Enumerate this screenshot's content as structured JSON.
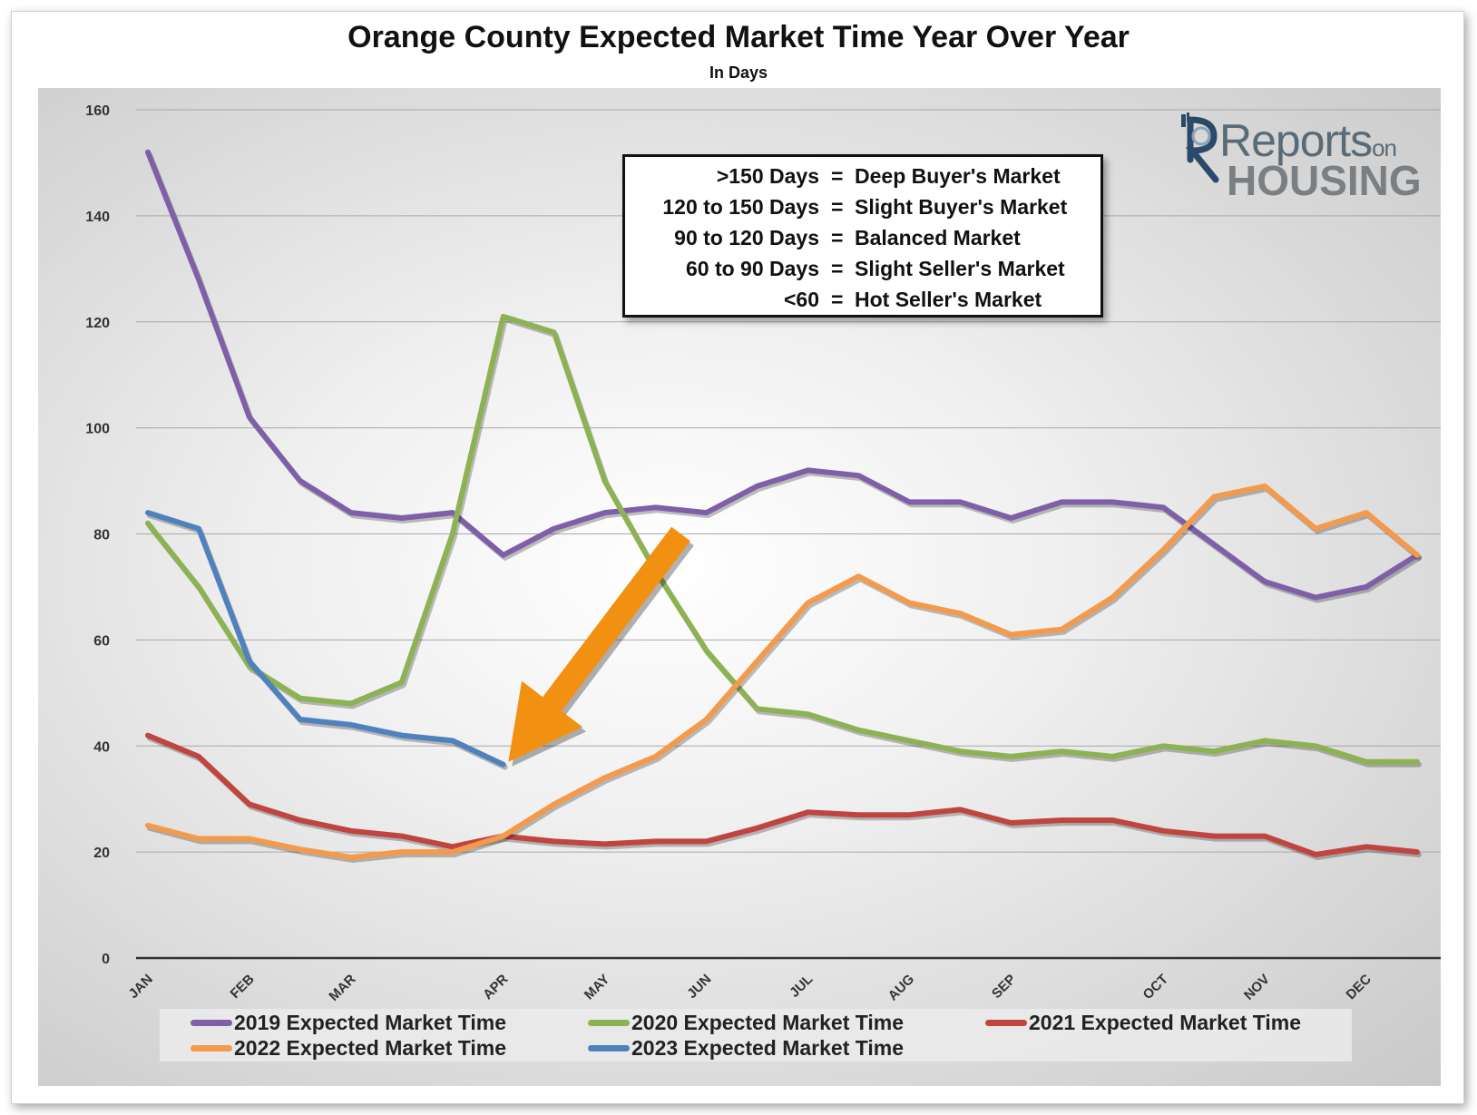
{
  "chart_data": {
    "type": "line",
    "title": "Orange County Expected Market Time Year Over Year",
    "subtitle": "In Days",
    "xlabel": "",
    "ylabel": "",
    "ylim": [
      0,
      160
    ],
    "yticks": [
      0,
      20,
      40,
      60,
      80,
      100,
      120,
      140,
      160
    ],
    "grid": true,
    "legend_position": "bottom",
    "x_ticks": [
      {
        "label": "JAN",
        "index": 0
      },
      {
        "label": "FEB",
        "index": 2
      },
      {
        "label": "MAR",
        "index": 4
      },
      {
        "label": "APR",
        "index": 7
      },
      {
        "label": "MAY",
        "index": 9
      },
      {
        "label": "JUN",
        "index": 11
      },
      {
        "label": "JUL",
        "index": 13
      },
      {
        "label": "AUG",
        "index": 15
      },
      {
        "label": "SEP",
        "index": 17
      },
      {
        "label": "OCT",
        "index": 20
      },
      {
        "label": "NOV",
        "index": 22
      },
      {
        "label": "DEC",
        "index": 24
      }
    ],
    "num_points": 26,
    "series": [
      {
        "name": "2019 Expected Market Time",
        "color": "#7f5fa8",
        "values": [
          152,
          128,
          102,
          90,
          84,
          83,
          84,
          76,
          81,
          84,
          85,
          84,
          89,
          92,
          91,
          86,
          86,
          83,
          86,
          86,
          85,
          78,
          71,
          68,
          70,
          76
        ]
      },
      {
        "name": "2020 Expected Market Time",
        "color": "#8db254",
        "values": [
          82,
          70,
          55,
          49,
          48,
          52,
          80,
          121,
          118,
          90,
          73,
          58,
          47,
          46,
          43,
          41,
          39,
          38,
          39,
          38,
          40,
          39,
          41,
          40,
          37,
          37
        ]
      },
      {
        "name": "2021 Expected Market Time",
        "color": "#c0443f",
        "values": [
          42,
          38,
          29,
          26,
          24,
          23,
          21,
          23,
          22,
          21.5,
          22,
          22,
          24.5,
          27.5,
          27,
          27,
          28,
          25.5,
          26,
          26,
          24,
          23,
          23,
          19.5,
          21,
          20
        ]
      },
      {
        "name": "2022 Expected Market Time",
        "color": "#f49a4c",
        "values": [
          25,
          22.5,
          22.5,
          20.5,
          19,
          20,
          20,
          23,
          29,
          34,
          38,
          45,
          56,
          67,
          72,
          67,
          65,
          61,
          62,
          68,
          77,
          87,
          89,
          81,
          84,
          76
        ]
      },
      {
        "name": "2023 Expected Market Time",
        "color": "#4f81bd",
        "values": [
          84,
          81,
          56,
          45,
          44,
          42,
          41,
          36.5
        ]
      }
    ],
    "annotations": [
      {
        "type": "arrow",
        "color": "#f29111",
        "from": {
          "x_index": 10.5,
          "y": 80
        },
        "to": {
          "x_index": 7.1,
          "y": 37
        }
      }
    ]
  },
  "key_box": {
    "rows": [
      {
        "range": ">150 Days",
        "eq": "=",
        "meaning": "Deep Buyer's Market"
      },
      {
        "range": "120 to 150 Days",
        "eq": "=",
        "meaning": "Slight Buyer's Market"
      },
      {
        "range": "90 to 120 Days",
        "eq": "=",
        "meaning": "Balanced Market"
      },
      {
        "range": "60 to 90 Days",
        "eq": "=",
        "meaning": "Slight Seller's Market"
      },
      {
        "range": "<60",
        "eq": "=",
        "meaning": "Hot Seller's Market"
      }
    ]
  },
  "logo": {
    "line1": "Reports",
    "line1_small": "on",
    "line2": "HOUSING"
  }
}
